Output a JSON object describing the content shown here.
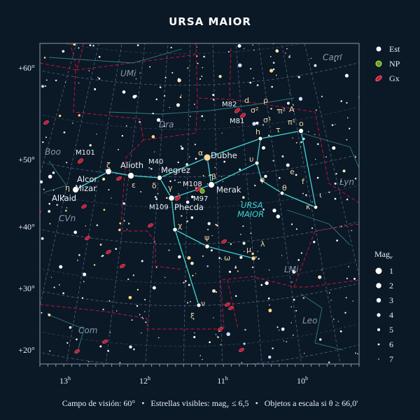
{
  "header": {
    "title": "URSA MAIOR"
  },
  "legend": {
    "items": [
      {
        "label": "Est"
      },
      {
        "label": "NP"
      },
      {
        "label": "Gx"
      }
    ]
  },
  "magnitude_scale": {
    "title": {
      "main": "Mag",
      "sub": "v"
    },
    "values": [
      1,
      2,
      3,
      4,
      5,
      6,
      7
    ]
  },
  "dec_labels": [
    "+60°",
    "+50°",
    "+40°",
    "+30°",
    "+20°"
  ],
  "ra_labels": [
    {
      "hour": "13",
      "unit": "h"
    },
    {
      "hour": "12",
      "unit": "h"
    },
    {
      "hour": "11",
      "unit": "h"
    },
    {
      "hour": "10",
      "unit": "h"
    }
  ],
  "star_names": [
    "Dubhe",
    "Merak",
    "Phecda",
    "Megrez",
    "Alioth",
    "Mizar",
    "Alcor",
    "Alkaid"
  ],
  "greek_labels": [
    "α",
    "β",
    "γ",
    "δ",
    "ε",
    "ζ",
    "η",
    "χ",
    "ψ",
    "μ",
    "λ",
    "υ",
    "φ",
    "θ",
    "κ",
    "ι",
    "h",
    "ο",
    "τ",
    "e",
    "f",
    "ν",
    "ξ",
    "ω",
    "d",
    "ρ",
    "σ²",
    "σ¹",
    "π²",
    "A",
    "π¹"
  ],
  "deep_sky_labels": [
    "M82",
    "M81",
    "M101",
    "M40",
    "M108",
    "M97",
    "M109"
  ],
  "constellation_labels": [
    "UMi",
    "Dra",
    "Cam",
    "Boo",
    "Lyn",
    "CVn",
    "LMi",
    "Leo",
    "Com"
  ],
  "constellation_title": [
    "URSA",
    "MAIOR"
  ],
  "footer": {
    "field": "Campo de visión: 60°",
    "separator": "•",
    "stars": "Estrellas visibles: mag",
    "stars_sub": "v",
    "stars_limit": "≤ 6,5",
    "objects": "Objetos a escala si θ ≥ 66,0'"
  }
}
